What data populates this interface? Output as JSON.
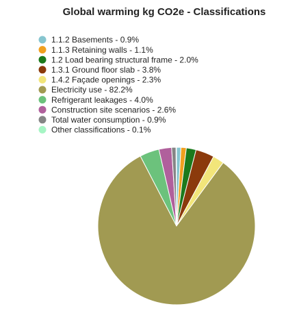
{
  "chart_data": {
    "type": "pie",
    "title": "Global warming kg CO2e - Classifications",
    "categories": [
      "1.1.2 Basements - 0.9%",
      "1.1.3 Retaining walls - 1.1%",
      "1.2 Load bearing structural frame - 2.0%",
      "1.3.1 Ground floor slab - 3.8%",
      "1.4.2 Façade openings - 2.3%",
      "Electricity use - 82.2%",
      "Refrigerant leakages - 4.0%",
      "Construction site scenarios - 2.6%",
      "Total water consumption - 0.9%",
      "Other classifications - 0.1%"
    ],
    "values": [
      0.9,
      1.1,
      2.0,
      3.8,
      2.3,
      82.2,
      4.0,
      2.6,
      0.9,
      0.1
    ],
    "colors": [
      "#86c5cf",
      "#f0a020",
      "#1c7a1c",
      "#8b3a0c",
      "#f2e57a",
      "#a19a52",
      "#6cc27c",
      "#b0609c",
      "#858585",
      "#a6f5c4"
    ]
  }
}
